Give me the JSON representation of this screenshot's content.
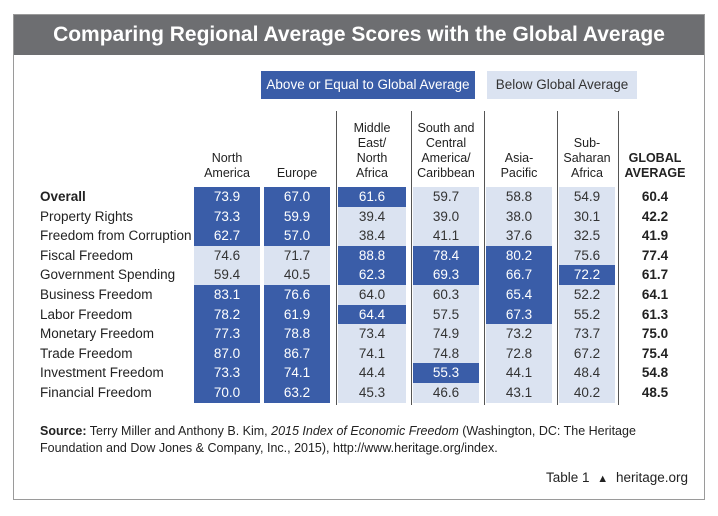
{
  "title": "Comparing Regional Average Scores with the Global Average",
  "legend": {
    "above": "Above or Equal to Global Average",
    "below": "Below Global Average"
  },
  "colors": {
    "above": "#3a5da8",
    "below": "#dbe3f1",
    "title_bar": "#6d6e71"
  },
  "chart_data": {
    "type": "table",
    "columns": [
      [
        "North",
        "America"
      ],
      [
        "Europe"
      ],
      [
        "Middle",
        "East/",
        "North",
        "Africa"
      ],
      [
        "South and",
        "Central",
        "America/",
        "Caribbean"
      ],
      [
        "Asia-",
        "Pacific"
      ],
      [
        "Sub-",
        "Saharan",
        "Africa"
      ],
      [
        "GLOBAL",
        "AVERAGE"
      ]
    ],
    "rows": [
      {
        "label": "Overall",
        "values": [
          "73.9",
          "67.0",
          "61.6",
          "59.7",
          "58.8",
          "54.9",
          "60.4"
        ]
      },
      {
        "label": "Property Rights",
        "values": [
          "73.3",
          "59.9",
          "39.4",
          "39.0",
          "38.0",
          "30.1",
          "42.2"
        ]
      },
      {
        "label": "Freedom from Corruption",
        "values": [
          "62.7",
          "57.0",
          "38.4",
          "41.1",
          "37.6",
          "32.5",
          "41.9"
        ]
      },
      {
        "label": "Fiscal Freedom",
        "values": [
          "74.6",
          "71.7",
          "88.8",
          "78.4",
          "80.2",
          "75.6",
          "77.4"
        ]
      },
      {
        "label": "Government Spending",
        "values": [
          "59.4",
          "40.5",
          "62.3",
          "69.3",
          "66.7",
          "72.2",
          "61.7"
        ]
      },
      {
        "label": "Business Freedom",
        "values": [
          "83.1",
          "76.6",
          "64.0",
          "60.3",
          "65.4",
          "52.2",
          "64.1"
        ]
      },
      {
        "label": "Labor Freedom",
        "values": [
          "78.2",
          "61.9",
          "64.4",
          "57.5",
          "67.3",
          "55.2",
          "61.3"
        ]
      },
      {
        "label": "Monetary Freedom",
        "values": [
          "77.3",
          "78.8",
          "73.4",
          "74.9",
          "73.2",
          "73.7",
          "75.0"
        ]
      },
      {
        "label": "Trade Freedom",
        "values": [
          "87.0",
          "86.7",
          "74.1",
          "74.8",
          "72.8",
          "67.2",
          "75.4"
        ]
      },
      {
        "label": "Investment Freedom",
        "values": [
          "73.3",
          "74.1",
          "44.4",
          "55.3",
          "44.1",
          "48.4",
          "54.8"
        ]
      },
      {
        "label": "Financial Freedom",
        "values": [
          "70.0",
          "63.2",
          "45.3",
          "46.6",
          "43.1",
          "40.2",
          "48.5"
        ]
      }
    ]
  },
  "source": {
    "label": "Source:",
    "text_before": "Terry Miller and Anthony B. Kim, ",
    "italic": "2015 Index of Economic Freedom",
    "text_after": " (Washington, DC: The Heritage Foundation and Dow Jones & Company, Inc., 2015), http://www.heritage.org/index."
  },
  "footer": {
    "table_label": "Table 1",
    "site": "heritage.org",
    "icon": "bell-icon"
  }
}
